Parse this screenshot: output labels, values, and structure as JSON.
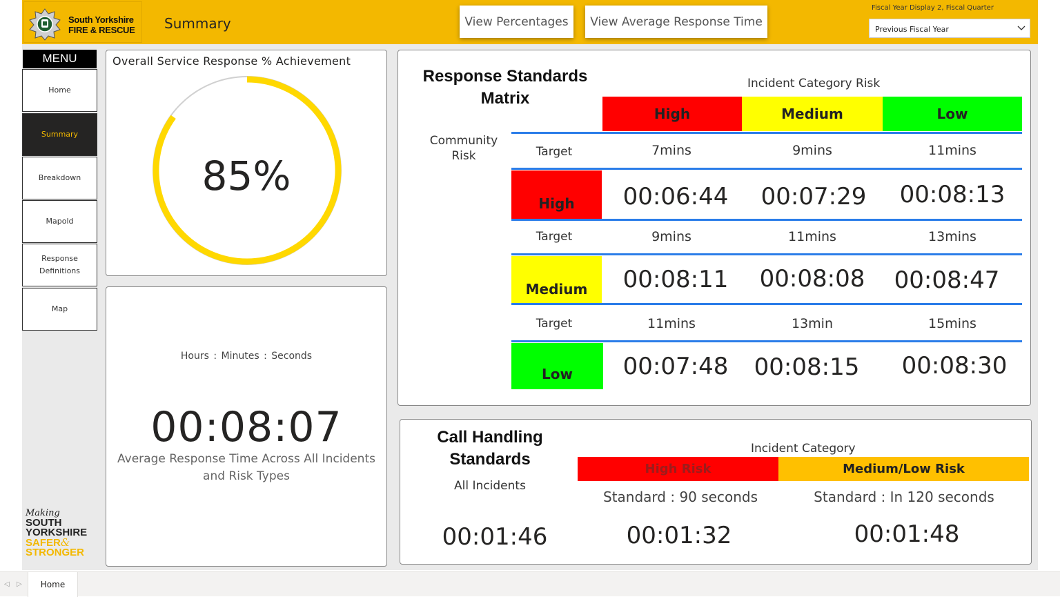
{
  "header": {
    "logo_line1": "South Yorkshire",
    "logo_line2": "FIRE & RESCUE",
    "page_title": "Summary",
    "btn_percentages": "View Percentages",
    "btn_avg_response": "View Average Response Time",
    "slicer_title": "Fiscal Year Display 2, Fiscal Quarter",
    "slicer_value": "Previous Fiscal Year",
    "brand_color": "#f3b800"
  },
  "menu": {
    "title": "MENU",
    "items": [
      {
        "label": "Home"
      },
      {
        "label": "Summary",
        "active": true
      },
      {
        "label": "Breakdown"
      },
      {
        "label": "Mapold"
      },
      {
        "label": "Response Definitions"
      },
      {
        "label": "Map"
      }
    ],
    "tagline": {
      "l1": "Making",
      "l2": "SOUTH",
      "l3": "YORKSHIRE",
      "l4": "SAFER",
      "l5": "&",
      "l6": "STRONGER"
    }
  },
  "gauge": {
    "title": "Overall Service Response % Achievement",
    "value_text": "85%",
    "fraction": 0.85,
    "color": "#ffd800"
  },
  "avg": {
    "units": "Hours : Minutes : Seconds",
    "value": "00:08:07",
    "desc_line1": "Average Response Time Across All Incidents",
    "desc_line2": "and Risk Types"
  },
  "matrix": {
    "title_line1": "Response Standards",
    "title_line2": "Matrix",
    "category_title": "Incident Category Risk",
    "community_risk_l1": "Community",
    "community_risk_l2": "Risk",
    "categories": [
      {
        "label": "High",
        "color": "#ff0000"
      },
      {
        "label": "Medium",
        "color": "#ffff00"
      },
      {
        "label": "Low",
        "color": "#00ff00"
      }
    ],
    "rows": [
      {
        "risk": "High",
        "color": "#ff0000",
        "target_label": "Target",
        "targets": [
          "7mins",
          "9mins",
          "11mins"
        ],
        "times": [
          "00:06:44",
          "00:07:29",
          "00:08:13"
        ]
      },
      {
        "risk": "Medium",
        "color": "#ffff00",
        "target_label": "Target",
        "targets": [
          "9mins",
          "11mins",
          "13mins"
        ],
        "times": [
          "00:08:11",
          "00:08:08",
          "00:08:47"
        ]
      },
      {
        "risk": "Low",
        "color": "#00ff00",
        "target_label": "Target",
        "targets": [
          "11mins",
          "13min",
          "15mins"
        ],
        "times": [
          "00:07:48",
          "00:08:15",
          "00:08:30"
        ]
      }
    ]
  },
  "call_handling": {
    "title_line1": "Call Handling",
    "title_line2": "Standards",
    "sub": "All Incidents",
    "all_value": "00:01:46",
    "category_title": "Incident Category",
    "cols": [
      {
        "label": "High Risk",
        "color": "#ff0000",
        "standard": "Standard : 90 seconds",
        "value": "00:01:32"
      },
      {
        "label": "Medium/Low Risk",
        "color": "#ffc000",
        "standard": "Standard : In 120 seconds",
        "value": "00:01:48"
      }
    ]
  },
  "tabs": {
    "page_tab": "Home"
  }
}
